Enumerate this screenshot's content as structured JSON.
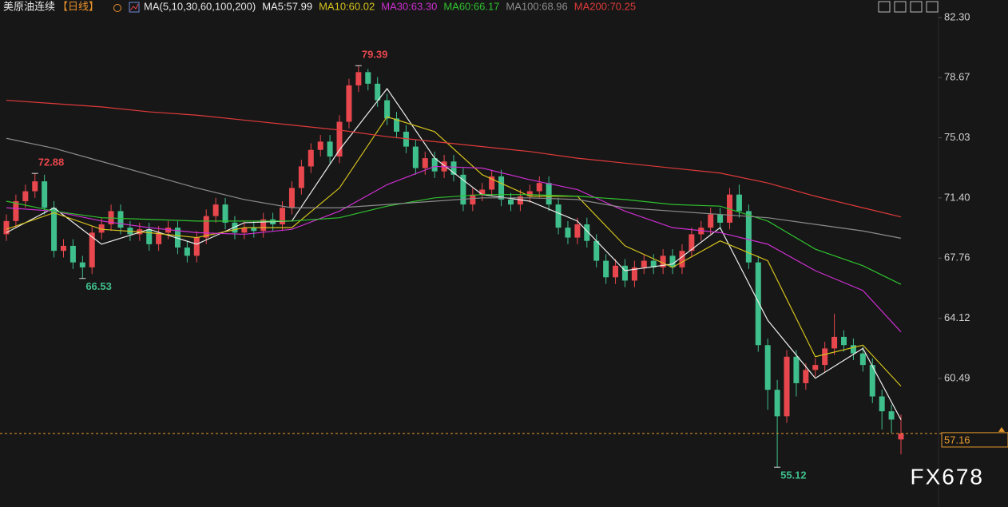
{
  "chart_data": {
    "type": "candlestick",
    "title": "美原油连续",
    "period": "【日线】",
    "ma_label": "MA(5,10,30,60,100,200)",
    "watermark": "FX678",
    "ylim": [
      53.44,
      83.36
    ],
    "yticks": [
      {
        "value": 82.3,
        "label": "82.30"
      },
      78.67,
      75.03,
      {
        "value": 71.4,
        "label": "71.40"
      },
      67.76,
      64.12,
      60.49
    ],
    "up_color": "#e8474d",
    "down_color": "#3fbf8c",
    "open": [
      69.2,
      70.0,
      71.2,
      71.8,
      72.4,
      70.8,
      68.2,
      68.5,
      67.5,
      67.2,
      69.3,
      69.8,
      70.6,
      69.6,
      69.2,
      69.5,
      68.6,
      69.3,
      69.6,
      68.4,
      67.9,
      69.0,
      70.3,
      71.0,
      69.9,
      69.3,
      69.6,
      69.4,
      70.1,
      69.8,
      70.8,
      72.0,
      73.3,
      74.3,
      74.8,
      73.9,
      76.0,
      78.2,
      79.0,
      78.3,
      77.3,
      76.2,
      75.4,
      74.5,
      73.2,
      73.8,
      73.0,
      73.6,
      72.8,
      71.0,
      71.6,
      71.9,
      72.7,
      71.3,
      71.0,
      71.5,
      71.8,
      72.3,
      71.0,
      69.6,
      69.0,
      69.8,
      68.8,
      67.6,
      66.6,
      67.3,
      66.4,
      67.2,
      67.6,
      67.2,
      67.9,
      67.2,
      68.2,
      69.2,
      69.6,
      70.4,
      69.9,
      71.6,
      70.6,
      67.5,
      62.5,
      59.8,
      58.2,
      61.8,
      60.2,
      61.0,
      61.3,
      62.3,
      63.0,
      62.5,
      62.0,
      61.3,
      59.4,
      58.5,
      56.8
    ],
    "high": [
      70.4,
      71.6,
      72.2,
      72.88,
      72.8,
      71.2,
      68.9,
      68.9,
      67.9,
      69.7,
      70.2,
      71.0,
      71.0,
      70.0,
      69.9,
      69.9,
      69.7,
      70.0,
      70.0,
      68.8,
      69.4,
      70.7,
      71.4,
      71.4,
      70.3,
      70.0,
      70.0,
      70.5,
      70.5,
      71.2,
      72.4,
      73.7,
      74.7,
      75.2,
      75.2,
      76.4,
      78.6,
      79.39,
      79.2,
      78.7,
      77.7,
      76.6,
      75.8,
      74.9,
      74.2,
      74.2,
      74.0,
      74.0,
      73.2,
      72.0,
      72.3,
      73.1,
      73.1,
      71.7,
      71.9,
      72.2,
      72.7,
      72.7,
      71.4,
      70.0,
      70.2,
      70.2,
      69.2,
      68.0,
      67.7,
      67.7,
      67.6,
      68.0,
      68.0,
      68.3,
      68.3,
      68.6,
      69.6,
      70.0,
      70.8,
      70.8,
      72.0,
      72.2,
      71.0,
      67.9,
      62.9,
      60.4,
      62.2,
      62.2,
      61.4,
      61.7,
      62.7,
      64.4,
      63.4,
      62.9,
      62.4,
      61.7,
      59.8,
      58.9,
      58.3
    ],
    "low": [
      68.8,
      69.6,
      70.8,
      71.4,
      70.4,
      67.8,
      67.8,
      67.1,
      66.53,
      66.8,
      68.9,
      69.4,
      69.2,
      68.8,
      68.8,
      68.2,
      68.2,
      68.9,
      68.0,
      67.5,
      67.5,
      68.6,
      69.9,
      69.5,
      68.9,
      68.9,
      69.0,
      69.0,
      69.4,
      69.4,
      70.4,
      71.6,
      72.9,
      73.9,
      73.5,
      73.5,
      75.6,
      77.8,
      77.9,
      76.9,
      75.8,
      75.0,
      74.1,
      72.8,
      72.8,
      72.6,
      72.6,
      72.4,
      70.6,
      70.6,
      71.2,
      71.5,
      70.9,
      70.6,
      70.6,
      71.1,
      71.4,
      70.6,
      69.2,
      68.6,
      68.6,
      68.4,
      67.2,
      66.2,
      66.2,
      66.0,
      66.0,
      66.8,
      66.8,
      66.8,
      66.8,
      66.8,
      67.8,
      68.8,
      69.2,
      69.5,
      69.5,
      70.2,
      67.1,
      62.1,
      58.6,
      55.12,
      57.8,
      59.4,
      59.8,
      60.6,
      60.9,
      61.9,
      62.1,
      61.6,
      60.9,
      59.0,
      57.4,
      57.2,
      55.9
    ],
    "close": [
      70.0,
      71.2,
      71.8,
      72.4,
      70.8,
      68.2,
      68.5,
      67.5,
      67.2,
      69.3,
      69.8,
      70.6,
      69.6,
      69.2,
      69.5,
      68.6,
      69.3,
      69.6,
      68.4,
      67.9,
      69.0,
      70.3,
      71.0,
      69.9,
      69.3,
      69.6,
      69.4,
      70.1,
      69.8,
      70.8,
      72.0,
      73.3,
      74.3,
      74.8,
      73.9,
      76.0,
      78.2,
      79.0,
      78.3,
      77.3,
      76.2,
      75.4,
      74.5,
      73.2,
      73.8,
      73.0,
      73.6,
      72.8,
      71.0,
      71.6,
      71.9,
      72.7,
      71.3,
      71.0,
      71.5,
      71.8,
      72.3,
      71.0,
      69.6,
      69.0,
      69.8,
      68.8,
      67.6,
      66.6,
      67.3,
      66.4,
      67.2,
      67.6,
      67.2,
      67.9,
      67.2,
      68.2,
      69.2,
      69.6,
      70.4,
      69.9,
      71.6,
      70.6,
      67.5,
      62.5,
      59.8,
      58.2,
      61.8,
      60.2,
      61.0,
      61.3,
      62.3,
      63.0,
      62.5,
      62.0,
      61.3,
      59.4,
      58.5,
      58.0,
      57.16
    ],
    "ma_x": [
      0,
      5,
      10,
      15,
      20,
      25,
      30,
      35,
      40,
      45,
      50,
      55,
      60,
      65,
      70,
      75,
      80,
      85,
      90,
      94
    ],
    "series": [
      {
        "name": "MA5:57.99",
        "color": "#eeeeee",
        "values": [
          69.3,
          70.8,
          68.6,
          69.5,
          68.6,
          69.9,
          70.0,
          74.3,
          78.0,
          73.8,
          71.6,
          71.2,
          70.0,
          67.0,
          67.4,
          69.6,
          64.0,
          60.5,
          62.3,
          57.99
        ]
      },
      {
        "name": "MA10:60.02",
        "color": "#d4c21c",
        "values": [
          69.5,
          70.5,
          69.5,
          69.3,
          69.0,
          69.6,
          69.6,
          72.0,
          76.3,
          75.4,
          72.8,
          71.5,
          71.5,
          68.5,
          67.2,
          68.8,
          67.6,
          61.8,
          62.5,
          60.02
        ]
      },
      {
        "name": "MA30:63.30",
        "color": "#cc2fd0",
        "values": [
          70.8,
          70.6,
          70.0,
          69.6,
          69.3,
          69.2,
          69.5,
          70.6,
          72.2,
          73.3,
          73.2,
          72.5,
          71.9,
          70.6,
          69.6,
          69.3,
          68.6,
          67.0,
          65.8,
          63.3
        ]
      },
      {
        "name": "MA60:66.17",
        "color": "#2fc22f",
        "values": [
          71.2,
          70.6,
          70.2,
          70.1,
          70.0,
          70.0,
          70.0,
          70.2,
          70.9,
          71.4,
          71.6,
          71.6,
          71.5,
          71.3,
          71.0,
          70.9,
          70.0,
          68.3,
          67.3,
          66.17
        ]
      },
      {
        "name": "MA100:68.96",
        "color": "#8c8c8c",
        "values": [
          75.0,
          74.4,
          73.6,
          72.8,
          72.0,
          71.3,
          70.8,
          70.8,
          71.0,
          71.2,
          71.4,
          71.4,
          71.3,
          70.8,
          70.6,
          70.4,
          70.2,
          69.8,
          69.4,
          68.96
        ]
      },
      {
        "name": "MA200:70.25",
        "color": "#e03a3a",
        "values": [
          77.3,
          77.1,
          76.9,
          76.6,
          76.4,
          76.1,
          75.8,
          75.5,
          75.1,
          74.8,
          74.5,
          74.2,
          73.8,
          73.5,
          73.2,
          72.9,
          72.3,
          71.5,
          70.8,
          70.25
        ]
      }
    ],
    "annotations": [
      {
        "index": 3,
        "value": 72.88,
        "color": "#e8474d"
      },
      {
        "index": 8,
        "value": 66.53,
        "color": "#3fbf8c"
      },
      {
        "index": 37,
        "value": 79.39,
        "color": "#e8474d"
      },
      {
        "index": 81,
        "value": 55.12,
        "color": "#3fbf8c"
      }
    ],
    "last_price": 57.16,
    "last_price_color": "#e89a2c"
  }
}
